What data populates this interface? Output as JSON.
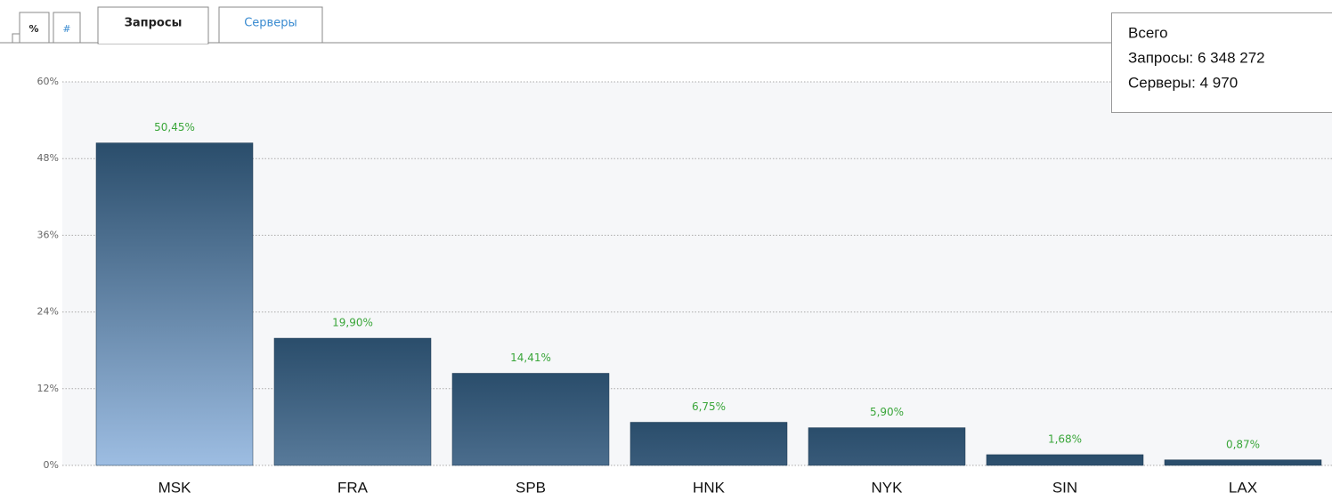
{
  "tabs": [
    "%",
    "#",
    "Запросы",
    "Серверы"
  ],
  "summary": [
    "Всего",
    "Запросы: 6 348 272",
    "Серверы: 4 970"
  ],
  "chart_data": {
    "type": "bar",
    "categories": [
      "MSK",
      "FRA",
      "SPB",
      "HNK",
      "NYK",
      "SIN",
      "LAX"
    ],
    "values": [
      50.45,
      19.9,
      14.41,
      6.75,
      5.9,
      1.68,
      0.87
    ],
    "value_labels": [
      "50,45%",
      "19,90%",
      "14,41%",
      "6,75%",
      "5,90%",
      "1,68%",
      "0,87%"
    ],
    "color": "#2a4d6b",
    "ylim": [
      0,
      60
    ],
    "yticks": [
      {
        "value": 0,
        "label": "0%"
      },
      {
        "value": 12,
        "label": "12%"
      },
      {
        "value": 24,
        "label": "24%"
      },
      {
        "value": 36,
        "label": "36%"
      },
      {
        "value": 48,
        "label": "48%"
      },
      {
        "value": 60,
        "label": "60%"
      }
    ],
    "grid": true
  }
}
